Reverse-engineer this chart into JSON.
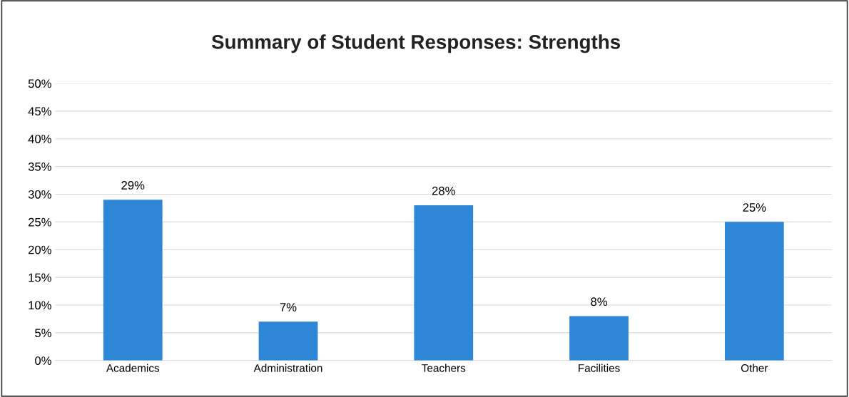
{
  "chart_data": {
    "type": "bar",
    "title": "Summary of Student Responses: Strengths",
    "categories": [
      "Academics",
      "Administration",
      "Teachers",
      "Facilities",
      "Other"
    ],
    "values": [
      29,
      7,
      28,
      8,
      25
    ],
    "value_labels": [
      "29%",
      "7%",
      "28%",
      "8%",
      "25%"
    ],
    "color": "#2e86d6",
    "ylim": [
      0,
      50
    ],
    "yticks": [
      {
        "value": 0,
        "label": "0%"
      },
      {
        "value": 5,
        "label": "5%"
      },
      {
        "value": 10,
        "label": "10%"
      },
      {
        "value": 15,
        "label": "15%"
      },
      {
        "value": 20,
        "label": "20%"
      },
      {
        "value": 25,
        "label": "25%"
      },
      {
        "value": 30,
        "label": "30%"
      },
      {
        "value": 35,
        "label": "35%"
      },
      {
        "value": 40,
        "label": "40%"
      },
      {
        "value": 45,
        "label": "45%"
      },
      {
        "value": 50,
        "label": "50%"
      }
    ],
    "grid": "y",
    "legend": false
  }
}
